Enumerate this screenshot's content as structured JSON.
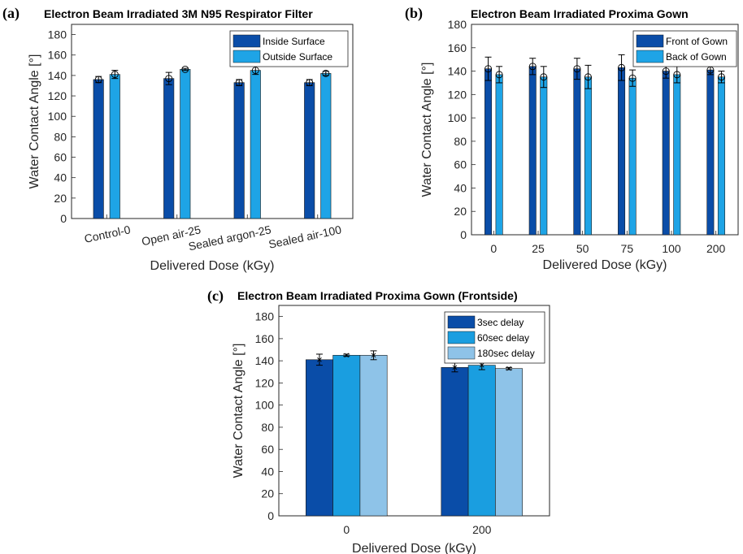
{
  "colors": {
    "dark_blue": "#0a4da8",
    "cyan_blue": "#1ea4e6",
    "mid_blue": "#1a9ee0",
    "light_blue": "#8ec3e8"
  },
  "chart_data": [
    {
      "id": "a",
      "panel_letter": "(a)",
      "type": "bar",
      "title": "Electron Beam Irradiated 3M N95 Respirator Filter",
      "xlabel": "Delivered Dose (kGy)",
      "ylabel": "Water Contact Angle [°]",
      "ylim": [
        0,
        190
      ],
      "yticks": [
        0,
        20,
        40,
        60,
        80,
        100,
        120,
        140,
        160,
        180
      ],
      "categories": [
        "Control-0",
        "Open air-25",
        "Sealed argon-25",
        "Sealed air-100"
      ],
      "rotated_xticks": true,
      "legend_position": "top-right",
      "series": [
        {
          "name": "Inside Surface",
          "color": "#0a4da8",
          "values": [
            136,
            137,
            133,
            133
          ],
          "errors": [
            3,
            6,
            3,
            3
          ]
        },
        {
          "name": "Outside Surface",
          "color": "#1ea4e6",
          "values": [
            141,
            146,
            145,
            142
          ],
          "errors": [
            4,
            1,
            4,
            2
          ]
        }
      ]
    },
    {
      "id": "b",
      "panel_letter": "(b)",
      "type": "bar",
      "title": "Electron Beam Irradiated Proxima Gown",
      "xlabel": "Delivered Dose (kGy)",
      "ylabel": "Water Contact Angle [°]",
      "ylim": [
        0,
        180
      ],
      "yticks": [
        0,
        20,
        40,
        60,
        80,
        100,
        120,
        140,
        160,
        180
      ],
      "categories": [
        "0",
        "25",
        "50",
        "75",
        "100",
        "200"
      ],
      "rotated_xticks": false,
      "legend_position": "top-right",
      "series": [
        {
          "name": "Front of Gown",
          "color": "#0a4da8",
          "values": [
            142,
            144,
            142,
            143,
            140,
            141
          ],
          "errors": [
            10,
            7,
            9,
            11,
            6,
            4
          ]
        },
        {
          "name": "Back of Gown",
          "color": "#1ea4e6",
          "values": [
            137,
            135,
            135,
            134,
            137,
            135
          ],
          "errors": [
            7,
            9,
            10,
            7,
            7,
            5
          ]
        }
      ]
    },
    {
      "id": "c",
      "panel_letter": "(c)",
      "type": "bar",
      "title": "Electron Beam Irradiated Proxima Gown (Frontside)",
      "xlabel": "Delivered Dose (kGy)",
      "ylabel": "Water Contact Angle [°]",
      "ylim": [
        0,
        190
      ],
      "yticks": [
        0,
        20,
        40,
        60,
        80,
        100,
        120,
        140,
        160,
        180
      ],
      "categories": [
        "0",
        "200"
      ],
      "rotated_xticks": false,
      "legend_position": "top-right",
      "series": [
        {
          "name": "3sec delay",
          "color": "#0a4da8",
          "values": [
            141,
            134
          ],
          "errors": [
            5,
            4
          ]
        },
        {
          "name": "60sec delay",
          "color": "#1a9ee0",
          "values": [
            145,
            136
          ],
          "errors": [
            1,
            4
          ]
        },
        {
          "name": "180sec delay",
          "color": "#8ec3e8",
          "values": [
            145,
            133
          ],
          "errors": [
            4,
            1
          ]
        }
      ]
    }
  ]
}
